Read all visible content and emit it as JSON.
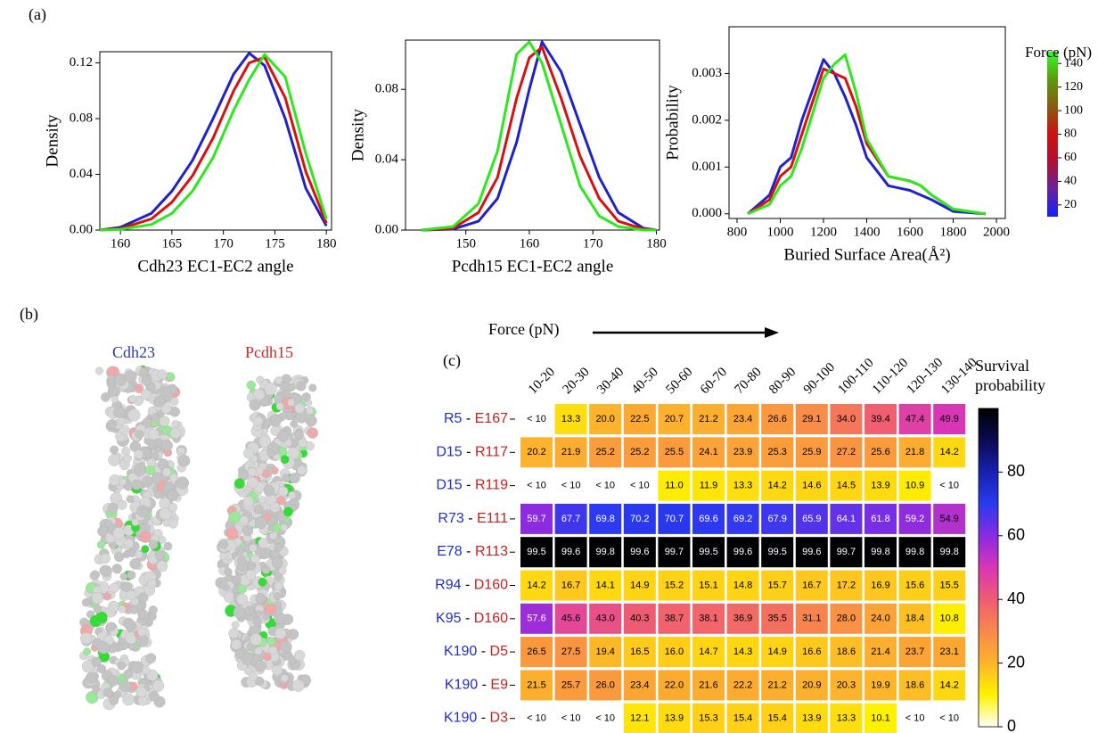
{
  "panel_labels": [
    "(a)",
    "(b)",
    "(c)"
  ],
  "structures": {
    "labels": [
      "Cdh23",
      "Pcdh15"
    ],
    "colors": [
      "#2a3aa8",
      "#d62728"
    ]
  },
  "chart_data": [
    {
      "type": "line",
      "ylabel": "Density",
      "xlabel": "Cdh23 EC1-EC2 angle",
      "xlim": [
        158,
        180.5
      ],
      "xticks": [
        160,
        165,
        170,
        175,
        180
      ],
      "ylim": [
        0,
        0.128
      ],
      "yticks": [
        {
          "value": 0,
          "label": "0.00"
        },
        0.04,
        0.08,
        0.12
      ],
      "x": [
        158,
        160,
        163,
        165,
        167,
        169,
        171,
        172.5,
        174,
        176,
        178,
        180
      ],
      "series": [
        {
          "color": "#1f22c8",
          "values": [
            0,
            0.002,
            0.012,
            0.028,
            0.05,
            0.08,
            0.112,
            0.127,
            0.118,
            0.08,
            0.03,
            0.003
          ]
        },
        {
          "color": "#d81010",
          "values": [
            0,
            0.001,
            0.008,
            0.02,
            0.039,
            0.066,
            0.1,
            0.12,
            0.124,
            0.095,
            0.042,
            0.005
          ]
        },
        {
          "color": "#2ee81e",
          "values": [
            0,
            0.0005,
            0.004,
            0.012,
            0.028,
            0.052,
            0.086,
            0.108,
            0.126,
            0.11,
            0.055,
            0.008
          ]
        }
      ]
    },
    {
      "type": "line",
      "ylabel": "Density",
      "xlabel": "Pcdh15 EC1-EC2 angle",
      "xlim": [
        140.5,
        180.5
      ],
      "xticks": [
        150,
        160,
        170,
        180
      ],
      "ylim": [
        0,
        0.108
      ],
      "yticks": [
        {
          "value": 0,
          "label": "0.00"
        },
        0.04,
        0.08
      ],
      "x": [
        143,
        148,
        152,
        155,
        158,
        160,
        162,
        165,
        168,
        171,
        174,
        178,
        180
      ],
      "series": [
        {
          "color": "#1f22c8",
          "values": [
            0,
            0.0005,
            0.005,
            0.018,
            0.05,
            0.08,
            0.107,
            0.09,
            0.06,
            0.03,
            0.01,
            0.001,
            0
          ]
        },
        {
          "color": "#d81010",
          "values": [
            0,
            0.001,
            0.01,
            0.03,
            0.075,
            0.098,
            0.104,
            0.075,
            0.042,
            0.018,
            0.005,
            0.0005,
            0
          ]
        },
        {
          "color": "#2ee81e",
          "values": [
            0,
            0.002,
            0.015,
            0.045,
            0.1,
            0.107,
            0.095,
            0.06,
            0.025,
            0.008,
            0.002,
            0,
            0
          ]
        }
      ]
    },
    {
      "type": "line",
      "ylabel": "Probability",
      "xlabel": "Buried Surface Area(Å²)",
      "xlim": [
        763,
        2041
      ],
      "xticks": [
        800,
        1000,
        1200,
        1400,
        1600,
        1800,
        2000
      ],
      "ylim": [
        -0.0001,
        0.004
      ],
      "yticks": [
        {
          "value": 0,
          "label": "0.000"
        },
        0.001,
        0.002,
        0.003
      ],
      "x": [
        850,
        950,
        1000,
        1050,
        1100,
        1200,
        1250,
        1300,
        1350,
        1400,
        1500,
        1600,
        1650,
        1700,
        1800,
        1950
      ],
      "series": [
        {
          "color": "#1f22c8",
          "values": [
            0,
            0.0004,
            0.001,
            0.0012,
            0.002,
            0.0033,
            0.003,
            0.0025,
            0.0019,
            0.0012,
            0.0006,
            0.0005,
            0.0004,
            0.0003,
            5e-05,
            0
          ]
        },
        {
          "color": "#d81010",
          "values": [
            0,
            0.0003,
            0.0008,
            0.001,
            0.0017,
            0.0031,
            0.003,
            0.0029,
            0.0023,
            0.0015,
            0.0008,
            0.0007,
            0.0006,
            0.0004,
            0.0001,
            0
          ]
        },
        {
          "color": "#2ee81e",
          "values": [
            0,
            0.0002,
            0.0006,
            0.0008,
            0.0014,
            0.0029,
            0.0032,
            0.0034,
            0.0026,
            0.0016,
            0.0008,
            0.0007,
            0.0006,
            0.0004,
            0.0001,
            0
          ]
        }
      ],
      "colorbar": {
        "title": "Force (pN)",
        "lim": [
          10,
          150
        ],
        "ticks": [
          20,
          40,
          60,
          80,
          100,
          120,
          140
        ],
        "colors": [
          "#1020ff",
          "#6a1fa0",
          "#b01030",
          "#d01010",
          "#8a5a10",
          "#5a9a10",
          "#30ff20"
        ]
      }
    },
    {
      "type": "heatmap",
      "x_title": "Force (pN)",
      "separator": "-",
      "categories": [
        "10-20",
        "20-30",
        "30-40",
        "40-50",
        "50-60",
        "60-70",
        "70-80",
        "80-90",
        "90-100",
        "100-110",
        "110-120",
        "120-130",
        "130-140"
      ],
      "rows": [
        {
          "left": "R5",
          "right": "E167"
        },
        {
          "left": "D15",
          "right": "R117"
        },
        {
          "left": "D15",
          "right": "R119"
        },
        {
          "left": "R73",
          "right": "E111"
        },
        {
          "left": "E78",
          "right": "R113"
        },
        {
          "left": "R94",
          "right": "D160"
        },
        {
          "left": "K95",
          "right": "D160"
        },
        {
          "left": "K190",
          "right": "D5"
        },
        {
          "left": "K190",
          "right": "E9"
        },
        {
          "left": "K190",
          "right": "D3"
        }
      ],
      "row_colors": [
        "#2030c0",
        "#c81e1e"
      ],
      "values": [
        [
          null,
          13.3,
          20.0,
          22.5,
          20.7,
          21.2,
          23.4,
          26.6,
          29.1,
          34.0,
          39.4,
          47.4,
          49.9
        ],
        [
          20.2,
          21.9,
          25.2,
          25.2,
          25.5,
          24.1,
          23.9,
          25.3,
          25.9,
          27.2,
          25.6,
          21.8,
          14.2
        ],
        [
          null,
          null,
          null,
          null,
          11.0,
          11.9,
          13.3,
          14.2,
          14.6,
          14.5,
          13.9,
          10.9,
          null
        ],
        [
          59.7,
          67.7,
          69.8,
          70.2,
          70.7,
          69.6,
          69.2,
          67.9,
          65.9,
          64.1,
          61.8,
          59.2,
          54.9
        ],
        [
          99.5,
          99.6,
          99.8,
          99.6,
          99.7,
          99.5,
          99.6,
          99.5,
          99.6,
          99.7,
          99.8,
          99.8,
          99.8
        ],
        [
          14.2,
          16.7,
          14.1,
          14.9,
          15.2,
          15.1,
          14.8,
          15.7,
          16.7,
          17.2,
          16.9,
          15.6,
          15.5
        ],
        [
          57.6,
          45.6,
          43.0,
          40.3,
          38.7,
          38.1,
          36.9,
          35.5,
          31.1,
          28.0,
          24.0,
          18.4,
          10.8
        ],
        [
          26.5,
          27.5,
          19.4,
          16.5,
          16.0,
          14.7,
          14.3,
          14.9,
          16.6,
          18.6,
          21.4,
          23.7,
          23.1
        ],
        [
          21.5,
          25.7,
          26.0,
          23.4,
          22.0,
          21.6,
          22.2,
          21.2,
          20.9,
          20.3,
          19.9,
          18.6,
          14.2
        ],
        [
          null,
          null,
          null,
          12.1,
          13.9,
          15.3,
          15.4,
          15.4,
          13.9,
          13.3,
          10.1,
          null,
          null
        ]
      ],
      "value_labels": [
        [
          "< 10",
          "13.3",
          "20.0",
          "22.5",
          "20.7",
          "21.2",
          "23.4",
          "26.6",
          "29.1",
          "34.0",
          "39.4",
          "47.4",
          "49.9"
        ],
        [
          "20.2",
          "21.9",
          "25.2",
          "25.2",
          "25.5",
          "24.1",
          "23.9",
          "25.3",
          "25.9",
          "27.2",
          "25.6",
          "21.8",
          "14.2"
        ],
        [
          "< 10",
          "< 10",
          "< 10",
          "< 10",
          "11.0",
          "11.9",
          "13.3",
          "14.2",
          "14.6",
          "14.5",
          "13.9",
          "10.9",
          "< 10"
        ],
        [
          "59.7",
          "67.7",
          "69.8",
          "70.2",
          "70.7",
          "69.6",
          "69.2",
          "67.9",
          "65.9",
          "64.1",
          "61.8",
          "59.2",
          "54.9"
        ],
        [
          "99.5",
          "99.6",
          "99.8",
          "99.6",
          "99.7",
          "99.5",
          "99.6",
          "99.5",
          "99.6",
          "99.7",
          "99.8",
          "99.8",
          "99.8"
        ],
        [
          "14.2",
          "16.7",
          "14.1",
          "14.9",
          "15.2",
          "15.1",
          "14.8",
          "15.7",
          "16.7",
          "17.2",
          "16.9",
          "15.6",
          "15.5"
        ],
        [
          "57.6",
          "45.6",
          "43.0",
          "40.3",
          "38.7",
          "38.1",
          "36.9",
          "35.5",
          "31.1",
          "28.0",
          "24.0",
          "18.4",
          "10.8"
        ],
        [
          "26.5",
          "27.5",
          "19.4",
          "16.5",
          "16.0",
          "14.7",
          "14.3",
          "14.9",
          "16.6",
          "18.6",
          "21.4",
          "23.7",
          "23.1"
        ],
        [
          "21.5",
          "25.7",
          "26.0",
          "23.4",
          "22.0",
          "21.6",
          "22.2",
          "21.2",
          "20.9",
          "20.3",
          "19.9",
          "18.6",
          "14.2"
        ],
        [
          "< 10",
          "< 10",
          "< 10",
          "12.1",
          "13.9",
          "15.3",
          "15.4",
          "15.4",
          "13.9",
          "13.3",
          "10.1",
          "< 10",
          "< 10"
        ]
      ],
      "clim": [
        0,
        100
      ],
      "cticks": [
        0,
        20,
        40,
        60,
        80
      ],
      "colorbar_title": [
        "Survival",
        "probability"
      ],
      "colors": [
        "#ffffff",
        "#fff200",
        "#fdb42a",
        "#f8894b",
        "#ef5c72",
        "#d836b6",
        "#8a2be2",
        "#2a3af0",
        "#1820b0",
        "#0b0b50",
        "#000000"
      ]
    }
  ]
}
